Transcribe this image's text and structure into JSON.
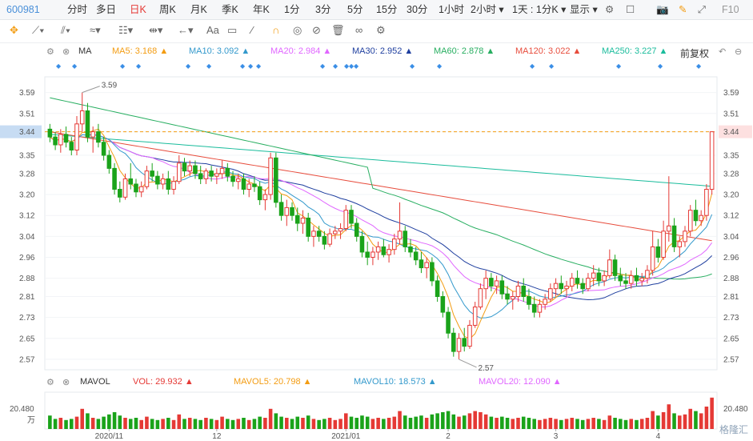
{
  "topbar": {
    "code": "600981",
    "items": [
      "分时",
      "多日",
      "日K",
      "周K",
      "月K",
      "季K",
      "年K",
      "1分",
      "3分",
      "5分",
      "15分",
      "30分",
      "1小时",
      "2小时 ▾",
      "1天 : 1分K ▾",
      "显示 ▾"
    ],
    "active": "日K",
    "right_label": "F10"
  },
  "toolbar": {
    "icons": [
      "crosshair-icon",
      "line-tool-icon",
      "channel-tool-icon",
      "wave-tool-icon",
      "fib-tool-icon",
      "range-tool-icon",
      "arrow-tool-icon",
      "text-tool-icon",
      "comment-tool-icon",
      "pen-icon",
      "magnet-icon",
      "eye-icon",
      "hide-icon",
      "trash-icon",
      "link-icon",
      "settings-icon"
    ],
    "text_label": "Aa"
  },
  "ma_line": {
    "label": "MA",
    "ma5": "MA5: 3.168 ▲",
    "ma10": "MA10: 3.092 ▲",
    "ma20": "MA20: 2.984 ▲",
    "ma30": "MA30: 2.952 ▲",
    "ma60": "MA60: 2.878 ▲",
    "ma120": "MA120: 3.022 ▲",
    "ma250": "MA250: 3.227 ▲",
    "adjust": "前复权"
  },
  "vol_line": {
    "label": "MAVOL",
    "vol": "VOL: 29.932 ▲",
    "mavol5": "MAVOL5: 20.798 ▲",
    "mavol10": "MAVOL10: 18.573 ▲",
    "mavol20": "MAVOL20: 12.090 ▲"
  },
  "colors": {
    "up": "#e53935",
    "down": "#1aa31a",
    "ma5": "#f39c12",
    "ma10": "#3399cc",
    "ma20": "#e066ff",
    "ma30": "#1f3f9f",
    "ma60": "#27ae60",
    "ma120": "#e74c3c",
    "ma250": "#1abc9c"
  },
  "chart_data": {
    "type": "candlestick",
    "y_ticks": [
      "3.59",
      "3.51",
      "3.44",
      "3.35",
      "3.28",
      "3.20",
      "3.12",
      "3.04",
      "2.96",
      "2.88",
      "2.81",
      "2.73",
      "2.65",
      "2.57"
    ],
    "ylim": [
      2.53,
      3.65
    ],
    "current_price": "3.44",
    "high_marker": "3.59",
    "low_marker": "2.57",
    "x_ticks": [
      "2020/11",
      "12",
      "2021/01",
      "2",
      "3",
      "4"
    ],
    "vol_tick": "20.480",
    "vol_unit": "万",
    "ohlc": [
      [
        3.45,
        3.47,
        3.4,
        3.42
      ],
      [
        3.42,
        3.44,
        3.37,
        3.39
      ],
      [
        3.39,
        3.45,
        3.36,
        3.43
      ],
      [
        3.43,
        3.46,
        3.38,
        3.4
      ],
      [
        3.4,
        3.42,
        3.35,
        3.37
      ],
      [
        3.37,
        3.5,
        3.35,
        3.47
      ],
      [
        3.47,
        3.59,
        3.44,
        3.52
      ],
      [
        3.52,
        3.55,
        3.4,
        3.42
      ],
      [
        3.42,
        3.46,
        3.36,
        3.44
      ],
      [
        3.44,
        3.47,
        3.38,
        3.4
      ],
      [
        3.4,
        3.42,
        3.33,
        3.35
      ],
      [
        3.35,
        3.37,
        3.28,
        3.3
      ],
      [
        3.3,
        3.32,
        3.2,
        3.22
      ],
      [
        3.22,
        3.25,
        3.17,
        3.19
      ],
      [
        3.19,
        3.28,
        3.18,
        3.26
      ],
      [
        3.26,
        3.32,
        3.22,
        3.24
      ],
      [
        3.24,
        3.26,
        3.19,
        3.21
      ],
      [
        3.21,
        3.25,
        3.19,
        3.23
      ],
      [
        3.23,
        3.31,
        3.22,
        3.29
      ],
      [
        3.29,
        3.32,
        3.25,
        3.27
      ],
      [
        3.27,
        3.29,
        3.22,
        3.24
      ],
      [
        3.24,
        3.28,
        3.22,
        3.26
      ],
      [
        3.26,
        3.29,
        3.2,
        3.22
      ],
      [
        3.22,
        3.27,
        3.2,
        3.25
      ],
      [
        3.25,
        3.35,
        3.24,
        3.32
      ],
      [
        3.32,
        3.34,
        3.27,
        3.29
      ],
      [
        3.29,
        3.33,
        3.27,
        3.31
      ],
      [
        3.31,
        3.33,
        3.26,
        3.28
      ],
      [
        3.28,
        3.31,
        3.24,
        3.26
      ],
      [
        3.26,
        3.3,
        3.24,
        3.29
      ],
      [
        3.29,
        3.31,
        3.25,
        3.27
      ],
      [
        3.27,
        3.3,
        3.24,
        3.28
      ],
      [
        3.28,
        3.33,
        3.26,
        3.3
      ],
      [
        3.3,
        3.32,
        3.25,
        3.27
      ],
      [
        3.27,
        3.29,
        3.23,
        3.25
      ],
      [
        3.25,
        3.28,
        3.22,
        3.26
      ],
      [
        3.26,
        3.28,
        3.2,
        3.22
      ],
      [
        3.22,
        3.26,
        3.19,
        3.24
      ],
      [
        3.24,
        3.27,
        3.21,
        3.23
      ],
      [
        3.23,
        3.25,
        3.16,
        3.18
      ],
      [
        3.18,
        3.22,
        3.14,
        3.2
      ],
      [
        3.2,
        3.36,
        3.18,
        3.34
      ],
      [
        3.34,
        3.36,
        3.15,
        3.17
      ],
      [
        3.17,
        3.2,
        3.1,
        3.12
      ],
      [
        3.12,
        3.18,
        3.08,
        3.15
      ],
      [
        3.15,
        3.17,
        3.1,
        3.12
      ],
      [
        3.12,
        3.15,
        3.06,
        3.09
      ],
      [
        3.09,
        3.14,
        3.05,
        3.11
      ],
      [
        3.11,
        3.13,
        3.02,
        3.04
      ],
      [
        3.04,
        3.08,
        3.0,
        3.06
      ],
      [
        3.06,
        3.08,
        3.02,
        3.04
      ],
      [
        3.04,
        3.06,
        2.99,
        3.01
      ],
      [
        3.01,
        3.07,
        3.0,
        3.05
      ],
      [
        3.05,
        3.08,
        3.03,
        3.06
      ],
      [
        3.06,
        3.09,
        3.03,
        3.07
      ],
      [
        3.07,
        3.16,
        3.06,
        3.14
      ],
      [
        3.14,
        3.16,
        3.07,
        3.09
      ],
      [
        3.09,
        3.11,
        3.02,
        3.04
      ],
      [
        3.04,
        3.06,
        2.96,
        2.98
      ],
      [
        2.98,
        3.02,
        2.93,
        2.96
      ],
      [
        2.96,
        3.0,
        2.93,
        2.98
      ],
      [
        2.98,
        3.02,
        2.95,
        3.0
      ],
      [
        3.0,
        3.03,
        2.96,
        2.97
      ],
      [
        2.97,
        3.01,
        2.94,
        2.99
      ],
      [
        2.99,
        3.05,
        2.97,
        3.03
      ],
      [
        3.03,
        3.17,
        3.01,
        3.06
      ],
      [
        3.06,
        3.08,
        2.98,
        3.0
      ],
      [
        3.0,
        3.03,
        2.96,
        2.98
      ],
      [
        2.98,
        3.0,
        2.93,
        2.95
      ],
      [
        2.95,
        2.98,
        2.9,
        2.92
      ],
      [
        2.92,
        2.96,
        2.88,
        2.94
      ],
      [
        2.94,
        2.96,
        2.85,
        2.87
      ],
      [
        2.87,
        2.89,
        2.79,
        2.81
      ],
      [
        2.81,
        2.83,
        2.73,
        2.75
      ],
      [
        2.75,
        2.77,
        2.65,
        2.67
      ],
      [
        2.67,
        2.69,
        2.58,
        2.6
      ],
      [
        2.6,
        2.67,
        2.57,
        2.65
      ],
      [
        2.65,
        2.69,
        2.6,
        2.62
      ],
      [
        2.62,
        2.72,
        2.61,
        2.7
      ],
      [
        2.7,
        2.79,
        2.69,
        2.77
      ],
      [
        2.77,
        2.86,
        2.76,
        2.84
      ],
      [
        2.84,
        2.91,
        2.8,
        2.88
      ],
      [
        2.88,
        2.9,
        2.83,
        2.85
      ],
      [
        2.85,
        2.89,
        2.82,
        2.87
      ],
      [
        2.87,
        2.89,
        2.8,
        2.82
      ],
      [
        2.82,
        2.85,
        2.78,
        2.8
      ],
      [
        2.8,
        2.83,
        2.76,
        2.81
      ],
      [
        2.81,
        2.87,
        2.79,
        2.85
      ],
      [
        2.85,
        2.88,
        2.79,
        2.81
      ],
      [
        2.81,
        2.84,
        2.76,
        2.78
      ],
      [
        2.78,
        2.81,
        2.73,
        2.75
      ],
      [
        2.75,
        2.8,
        2.73,
        2.78
      ],
      [
        2.78,
        2.82,
        2.76,
        2.8
      ],
      [
        2.8,
        2.86,
        2.79,
        2.84
      ],
      [
        2.84,
        2.88,
        2.81,
        2.86
      ],
      [
        2.86,
        2.89,
        2.82,
        2.84
      ],
      [
        2.84,
        2.87,
        2.81,
        2.85
      ],
      [
        2.85,
        2.9,
        2.83,
        2.88
      ],
      [
        2.88,
        2.91,
        2.84,
        2.86
      ],
      [
        2.86,
        2.88,
        2.82,
        2.84
      ],
      [
        2.84,
        2.9,
        2.83,
        2.88
      ],
      [
        2.88,
        2.93,
        2.85,
        2.9
      ],
      [
        2.9,
        2.92,
        2.85,
        2.87
      ],
      [
        2.87,
        2.91,
        2.85,
        2.89
      ],
      [
        2.89,
        2.99,
        2.88,
        2.95
      ],
      [
        2.95,
        2.97,
        2.87,
        2.89
      ],
      [
        2.89,
        2.92,
        2.85,
        2.87
      ],
      [
        2.87,
        2.9,
        2.84,
        2.86
      ],
      [
        2.86,
        2.91,
        2.84,
        2.89
      ],
      [
        2.89,
        2.92,
        2.85,
        2.87
      ],
      [
        2.87,
        2.9,
        2.85,
        2.88
      ],
      [
        2.88,
        2.93,
        2.86,
        2.91
      ],
      [
        2.91,
        3.06,
        2.89,
        3.0
      ],
      [
        3.0,
        3.03,
        2.94,
        2.96
      ],
      [
        2.96,
        3.1,
        2.95,
        3.06
      ],
      [
        3.06,
        3.27,
        3.02,
        3.08
      ],
      [
        3.08,
        3.11,
        2.98,
        3.0
      ],
      [
        3.0,
        3.04,
        2.96,
        3.02
      ],
      [
        3.02,
        3.08,
        3.0,
        3.06
      ],
      [
        3.06,
        3.16,
        3.04,
        3.14
      ],
      [
        3.14,
        3.18,
        3.08,
        3.1
      ],
      [
        3.1,
        3.14,
        3.08,
        3.12
      ],
      [
        3.12,
        3.24,
        3.1,
        3.22
      ],
      [
        3.22,
        3.44,
        3.2,
        3.44
      ]
    ],
    "volume": [
      12,
      9,
      10,
      8,
      9,
      11,
      18,
      14,
      10,
      9,
      11,
      13,
      15,
      12,
      10,
      9,
      10,
      8,
      11,
      9,
      8,
      9,
      10,
      8,
      13,
      9,
      10,
      9,
      8,
      10,
      9,
      8,
      11,
      9,
      8,
      9,
      10,
      8,
      9,
      11,
      10,
      18,
      14,
      11,
      10,
      9,
      11,
      10,
      12,
      9,
      8,
      9,
      10,
      8,
      9,
      14,
      11,
      10,
      12,
      11,
      9,
      10,
      9,
      10,
      11,
      16,
      12,
      10,
      11,
      12,
      10,
      13,
      14,
      15,
      16,
      13,
      11,
      12,
      14,
      16,
      15,
      13,
      11,
      10,
      11,
      10,
      9,
      10,
      11,
      10,
      9,
      8,
      9,
      10,
      9,
      8,
      9,
      10,
      9,
      8,
      9,
      10,
      9,
      8,
      12,
      10,
      9,
      8,
      9,
      8,
      9,
      10,
      16,
      12,
      15,
      22,
      14,
      12,
      13,
      18,
      16,
      14,
      20,
      28
    ]
  }
}
